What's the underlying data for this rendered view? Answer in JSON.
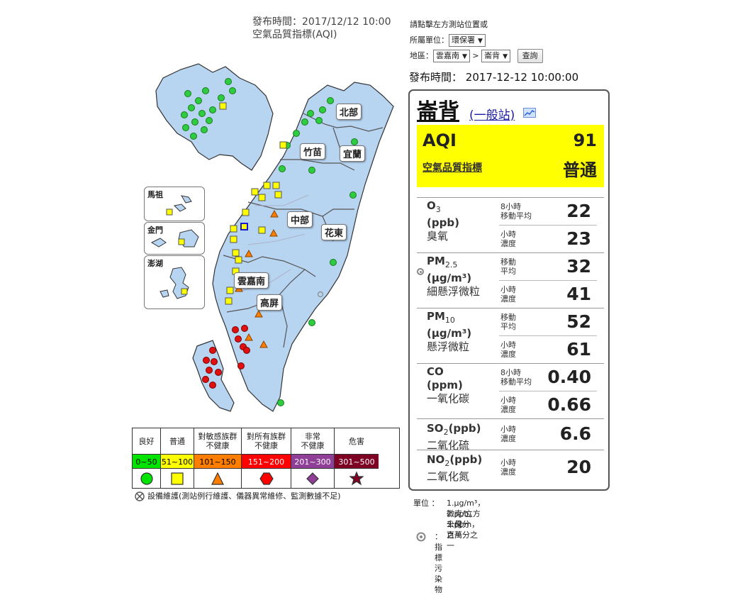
{
  "header": {
    "publish_time_line": "發布時間：2017/12/12 10:00",
    "index_title": "空氣品質指標(AQI)"
  },
  "controls": {
    "instruction": "請點擊左方測站位置或",
    "unit_label": "所屬單位：",
    "unit_value": "環保署",
    "area_label": "地區：",
    "area_value": "雲嘉南",
    "separator": ">",
    "station_value": "崙背",
    "query_button": "查詢"
  },
  "publish": {
    "label": "發布時間：",
    "value": "2017-12-12 10:00:00"
  },
  "station": {
    "name": "崙背",
    "type": "(一般站)",
    "aqi_label": "AQI",
    "aqi_value": "91",
    "aqi_link": "空氣品質指標",
    "aqi_status": "普通",
    "aqi_color": "#ffff00"
  },
  "pollutants": [
    {
      "name": "O",
      "sub": "3",
      "unit": "(ppb)",
      "cn": "臭氧",
      "readings": [
        {
          "label1": "8小時",
          "label2": "移動平均",
          "value": "22"
        },
        {
          "label1": "小時",
          "label2": "濃度",
          "value": "23"
        }
      ]
    },
    {
      "name": "PM",
      "sub": "2.5",
      "unit": "(μg/m³)",
      "cn": "細懸浮微粒",
      "readings": [
        {
          "label1": "移動",
          "label2": "平均",
          "value": "32"
        },
        {
          "label1": "小時",
          "label2": "濃度",
          "value": "41"
        }
      ]
    },
    {
      "name": "PM",
      "sub": "10",
      "unit": "(μg/m³)",
      "cn": "懸浮微粒",
      "readings": [
        {
          "label1": "移動",
          "label2": "平均",
          "value": "52"
        },
        {
          "label1": "小時",
          "label2": "濃度",
          "value": "61"
        }
      ]
    },
    {
      "name": "CO",
      "sub": "",
      "unit": "(ppm)",
      "cn": "一氧化碳",
      "readings": [
        {
          "label1": "8小時",
          "label2": "移動平均",
          "value": "0.40"
        },
        {
          "label1": "小時",
          "label2": "濃度",
          "value": "0.66"
        }
      ]
    },
    {
      "name": "SO",
      "sub": "2",
      "unit": "(ppb)",
      "cn": "二氧化硫",
      "readings": [
        {
          "label1": "小時",
          "label2": "濃度",
          "value": "6.6"
        }
      ]
    },
    {
      "name": "NO",
      "sub": "2",
      "unit": "(ppb)",
      "cn": "二氧化氮",
      "readings": [
        {
          "label1": "小時",
          "label2": "濃度",
          "value": "20"
        }
      ]
    }
  ],
  "notes": {
    "unit_label": "單位 ：",
    "line1": "1.μg/m³，微克/立方公尺",
    "line2": "2.ppb，十億分之一",
    "line3": "3.ppm，百萬分之一",
    "indicator_label": "：  指標污染物"
  },
  "map": {
    "regions": [
      "北部",
      "竹苗",
      "宜蘭",
      "中部",
      "花東",
      "雲嘉南",
      "高屏"
    ],
    "insets": [
      "馬祖",
      "金門",
      "澎湖"
    ]
  },
  "legend": [
    {
      "name": "良好",
      "range": "0~50",
      "color": "#00e400",
      "text_color": "#000",
      "symbol": "circle"
    },
    {
      "name": "普通",
      "range": "51~100",
      "color": "#ffff00",
      "text_color": "#000",
      "symbol": "square"
    },
    {
      "name": "對敏感族群\n不健康",
      "range": "101~150",
      "color": "#ff7e00",
      "text_color": "#000",
      "symbol": "triangle"
    },
    {
      "name": "對所有族群\n不健康",
      "range": "151~200",
      "color": "#ff0000",
      "text_color": "#fff",
      "symbol": "hexagon"
    },
    {
      "name": "非常\n不健康",
      "range": "201~300",
      "color": "#8f3f97",
      "text_color": "#fff",
      "symbol": "diamond"
    },
    {
      "name": "危害",
      "range": "301~500",
      "color": "#7e0023",
      "text_color": "#fff",
      "symbol": "star"
    }
  ],
  "maintenance_note": "設備維護(測站例行維護、儀器異常維修、監測數據不足)"
}
